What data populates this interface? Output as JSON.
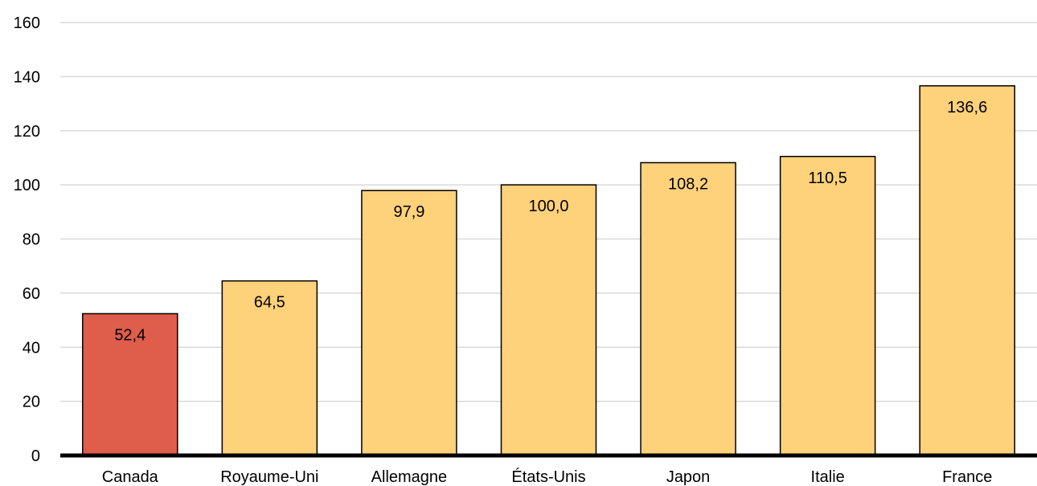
{
  "chart_data": {
    "type": "bar",
    "categories": [
      "Canada",
      "Royaume-Uni",
      "Allemagne",
      "États-Unis",
      "Japon",
      "Italie",
      "France"
    ],
    "values": [
      52.4,
      64.5,
      97.9,
      100.0,
      108.2,
      110.5,
      136.6
    ],
    "data_labels": [
      "52,4",
      "64,5",
      "97,9",
      "100,0",
      "108,2",
      "110,5",
      "136,6"
    ],
    "y_ticks": [
      0,
      20,
      40,
      60,
      80,
      100,
      120,
      140,
      160
    ],
    "ylim": [
      0,
      160
    ],
    "grid": true,
    "legend": "none",
    "colors": {
      "highlight": "#de5d4b",
      "default": "#fed17b",
      "outline": "#000000",
      "grid": "#d9d9d9"
    },
    "highlight_index": 0
  }
}
